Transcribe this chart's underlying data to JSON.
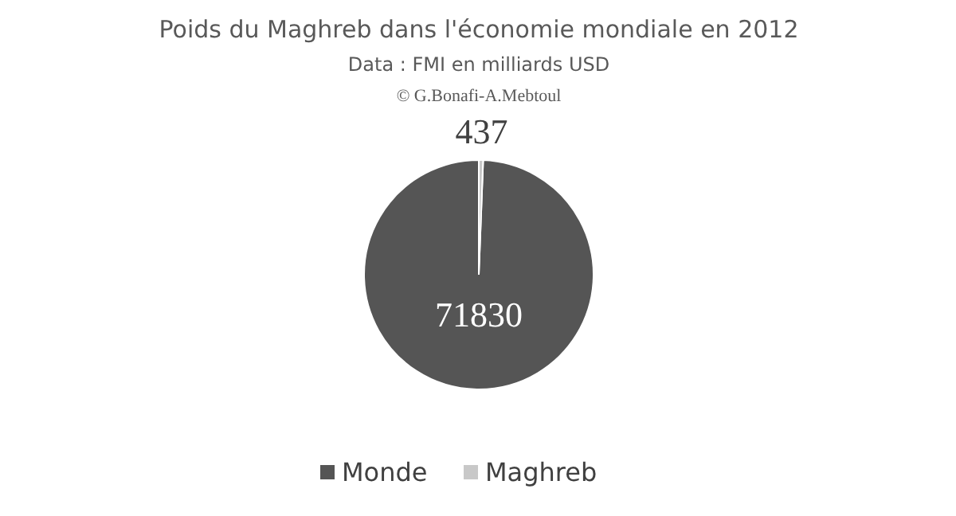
{
  "chart_data": {
    "type": "pie",
    "title": "Poids du Maghreb dans l'économie mondiale en 2012",
    "subtitle": "Data : FMI en milliards USD",
    "annotations": [
      "© G.Bonafi-A.Mebtoul"
    ],
    "categories": [
      "Monde",
      "Maghreb"
    ],
    "values": [
      71830,
      437
    ],
    "colors": [
      "#555555",
      "#c8c8c8"
    ],
    "data_labels": true,
    "legend": "bottom"
  }
}
